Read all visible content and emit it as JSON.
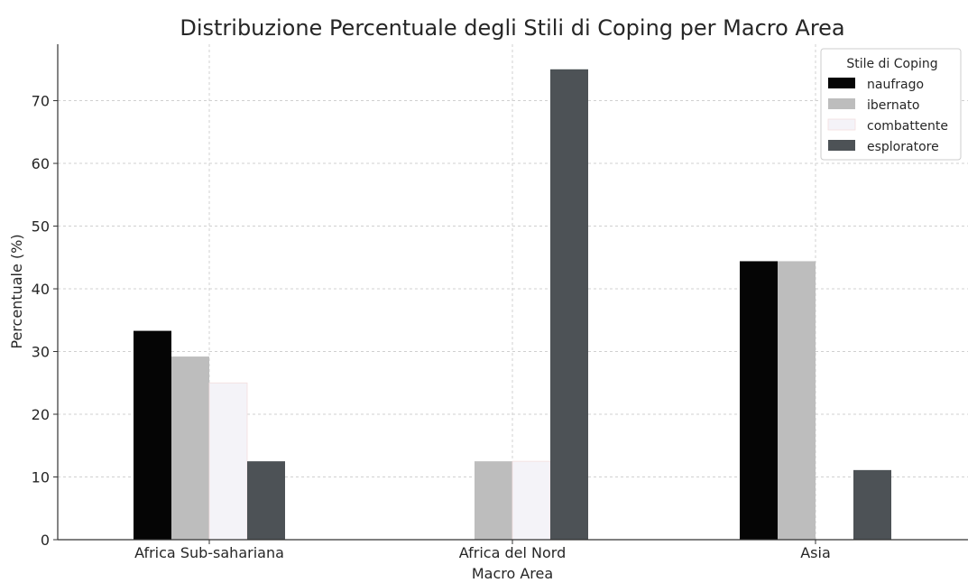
{
  "chart_data": {
    "type": "bar",
    "title": "Distribuzione Percentuale degli Stili di Coping per Macro Area",
    "xlabel": "Macro Area",
    "ylabel": "Percentuale (%)",
    "categories": [
      "Africa Sub-sahariana",
      "Africa del Nord",
      "Asia"
    ],
    "series": [
      {
        "name": "naufrago",
        "color": "#050505",
        "values": [
          33.3,
          0,
          44.4
        ]
      },
      {
        "name": "ibernato",
        "color": "#bdbdbd",
        "values": [
          29.2,
          12.5,
          44.4
        ]
      },
      {
        "name": "combattente",
        "color": "#f4f3f8",
        "values": [
          25.0,
          12.5,
          0
        ]
      },
      {
        "name": "esploratore",
        "color": "#4d5256",
        "values": [
          12.5,
          75.0,
          11.1
        ]
      }
    ],
    "ylim": [
      0,
      79
    ],
    "yticks": [
      0,
      10,
      20,
      30,
      40,
      50,
      60,
      70
    ],
    "grid": true,
    "legend": {
      "title": "Stile di Coping",
      "position": "top-right"
    }
  }
}
